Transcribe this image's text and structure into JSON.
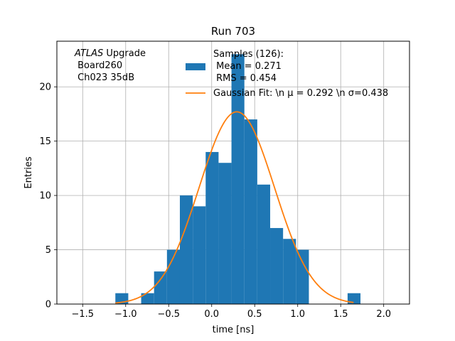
{
  "chart_data": {
    "type": "bar",
    "title": "Run 703",
    "xlabel": "time [ns]",
    "ylabel": "Entries",
    "xlim": [
      -1.8,
      2.3
    ],
    "ylim": [
      0,
      24.2
    ],
    "xticks": [
      -1.5,
      -1.0,
      -0.5,
      0.0,
      0.5,
      1.0,
      1.5,
      2.0
    ],
    "xtick_labels": [
      "−1.5",
      "−1.0",
      "−0.5",
      "0.0",
      "0.5",
      "1.0",
      "1.5",
      "2.0"
    ],
    "yticks": [
      0,
      5,
      10,
      15,
      20
    ],
    "ytick_labels": [
      "0",
      "5",
      "10",
      "15",
      "20"
    ],
    "grid": true,
    "bin_edges": [
      -1.12,
      -0.97,
      -0.82,
      -0.67,
      -0.52,
      -0.37,
      -0.22,
      -0.07,
      0.08,
      0.23,
      0.38,
      0.53,
      0.68,
      0.83,
      0.98,
      1.13,
      1.28,
      1.43,
      1.58,
      1.73
    ],
    "counts": [
      1,
      0,
      1,
      3,
      5,
      10,
      9,
      14,
      13,
      23,
      17,
      11,
      7,
      6,
      5,
      0,
      0,
      0,
      1
    ],
    "bar_color": "#1f77b4",
    "fit": {
      "mu": 0.292,
      "sigma": 0.438,
      "amplitude": 17.7,
      "x_range": [
        -1.12,
        1.65
      ],
      "color": "#ff7f0e"
    },
    "annotation_lines": [
      {
        "italic": "ATLAS",
        "rest": " Upgrade"
      },
      {
        "italic": "",
        "rest": " Board260"
      },
      {
        "italic": "",
        "rest": " Ch023 35dB"
      }
    ],
    "legend": {
      "placement": "top-center",
      "hist_label_lines": [
        "Samples (126):",
        " Mean = 0.271",
        " RMS = 0.454"
      ],
      "fit_label": "Gaussian Fit: \\n μ = 0.292 \\n σ=0.438"
    }
  }
}
